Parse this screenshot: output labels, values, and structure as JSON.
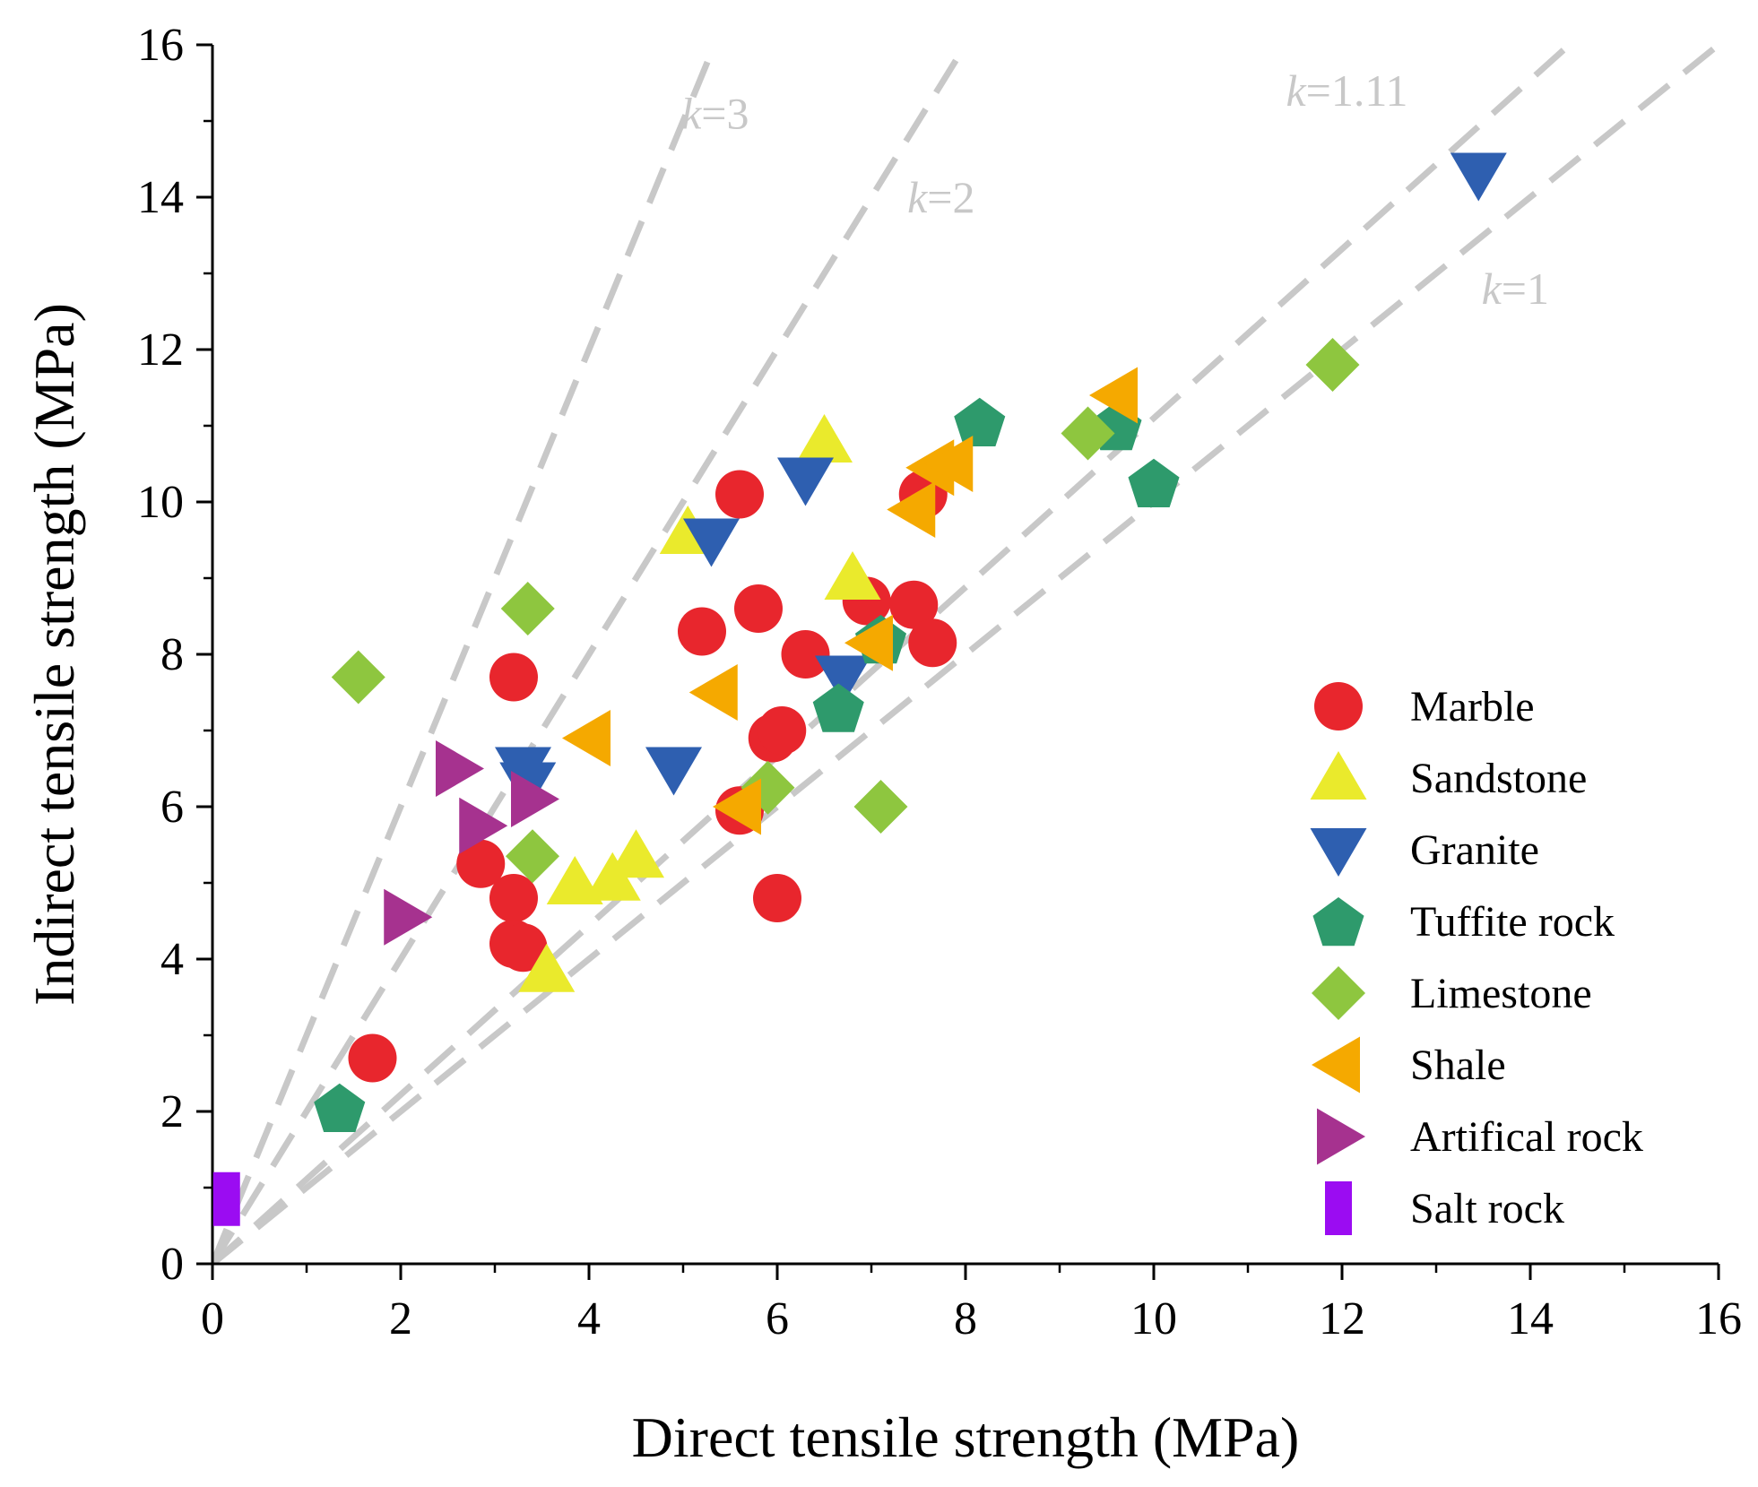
{
  "chart_data": {
    "type": "scatter",
    "xlabel": "Direct tensile strength (MPa)",
    "ylabel": "Indirect tensile strength (MPa)",
    "xlim": [
      0,
      16
    ],
    "ylim": [
      0,
      16
    ],
    "xticks": [
      0,
      2,
      4,
      6,
      8,
      10,
      12,
      14,
      16
    ],
    "yticks": [
      0,
      2,
      4,
      6,
      8,
      10,
      12,
      14,
      16
    ],
    "xtick_labels": [
      "0",
      "2",
      "4",
      "6",
      "8",
      "10",
      "12",
      "14",
      "16"
    ],
    "ytick_labels": [
      "0",
      "2",
      "4",
      "6",
      "8",
      "10",
      "12",
      "14",
      "16"
    ],
    "legend_position": "bottom-right",
    "reference_lines": [
      {
        "k": 3,
        "prefix": "k",
        "label": "=3"
      },
      {
        "k": 2,
        "prefix": "k",
        "label": "=2"
      },
      {
        "k": 1.11,
        "prefix": "k",
        "label": "=1.11"
      },
      {
        "k": 1,
        "prefix": "k",
        "label": "=1"
      }
    ],
    "series": [
      {
        "name": "Marble",
        "marker": "circle",
        "color": "#e8262d",
        "points": [
          [
            1.7,
            2.7
          ],
          [
            2.85,
            5.25
          ],
          [
            3.2,
            4.8
          ],
          [
            3.2,
            4.2
          ],
          [
            3.3,
            4.15
          ],
          [
            3.2,
            7.7
          ],
          [
            5.2,
            8.3
          ],
          [
            5.6,
            10.1
          ],
          [
            5.8,
            8.6
          ],
          [
            5.95,
            6.9
          ],
          [
            6.05,
            7.0
          ],
          [
            5.6,
            5.95
          ],
          [
            6.0,
            4.8
          ],
          [
            6.3,
            8.0
          ],
          [
            6.95,
            8.7
          ],
          [
            7.45,
            8.65
          ],
          [
            7.65,
            8.15
          ],
          [
            7.55,
            10.1
          ]
        ]
      },
      {
        "name": "Sandstone",
        "marker": "triangle-up",
        "color": "#eaea2c",
        "points": [
          [
            3.55,
            3.85
          ],
          [
            3.85,
            5.0
          ],
          [
            4.25,
            5.05
          ],
          [
            4.5,
            5.35
          ],
          [
            5.05,
            9.6
          ],
          [
            6.5,
            10.8
          ],
          [
            6.8,
            9.0
          ]
        ]
      },
      {
        "name": "Granite",
        "marker": "triangle-down",
        "color": "#2e5fb0",
        "points": [
          [
            3.3,
            6.5
          ],
          [
            3.35,
            6.3
          ],
          [
            4.9,
            6.5
          ],
          [
            5.3,
            9.5
          ],
          [
            6.3,
            10.3
          ],
          [
            6.7,
            7.7
          ],
          [
            13.45,
            14.3
          ]
        ]
      },
      {
        "name": "Tuffite rock",
        "marker": "pentagon",
        "color": "#2e9a6c",
        "points": [
          [
            1.35,
            2.05
          ],
          [
            6.65,
            7.3
          ],
          [
            7.1,
            8.2
          ],
          [
            8.15,
            11.05
          ],
          [
            9.6,
            11.0
          ],
          [
            10.0,
            10.25
          ]
        ]
      },
      {
        "name": "Limestone",
        "marker": "diamond",
        "color": "#8ec63f",
        "points": [
          [
            1.55,
            7.7
          ],
          [
            3.35,
            8.6
          ],
          [
            3.4,
            5.35
          ],
          [
            5.9,
            6.25
          ],
          [
            7.1,
            6.0
          ],
          [
            9.3,
            10.9
          ],
          [
            11.9,
            11.8
          ]
        ]
      },
      {
        "name": "Shale",
        "marker": "triangle-left",
        "color": "#f5a900",
        "points": [
          [
            4.0,
            6.9
          ],
          [
            5.35,
            7.5
          ],
          [
            5.6,
            6.0
          ],
          [
            7.0,
            8.15
          ],
          [
            7.45,
            9.9
          ],
          [
            7.65,
            10.45
          ],
          [
            7.85,
            10.5
          ],
          [
            9.6,
            11.4
          ]
        ]
      },
      {
        "name": "Artifical rock",
        "marker": "triangle-right",
        "color": "#a6328f",
        "points": [
          [
            2.05,
            4.55
          ],
          [
            2.6,
            6.5
          ],
          [
            2.85,
            5.75
          ],
          [
            3.4,
            6.1
          ]
        ]
      },
      {
        "name": "Salt rock",
        "marker": "square",
        "color": "#9b0cf2",
        "points": [
          [
            0.15,
            0.85
          ]
        ]
      }
    ]
  }
}
